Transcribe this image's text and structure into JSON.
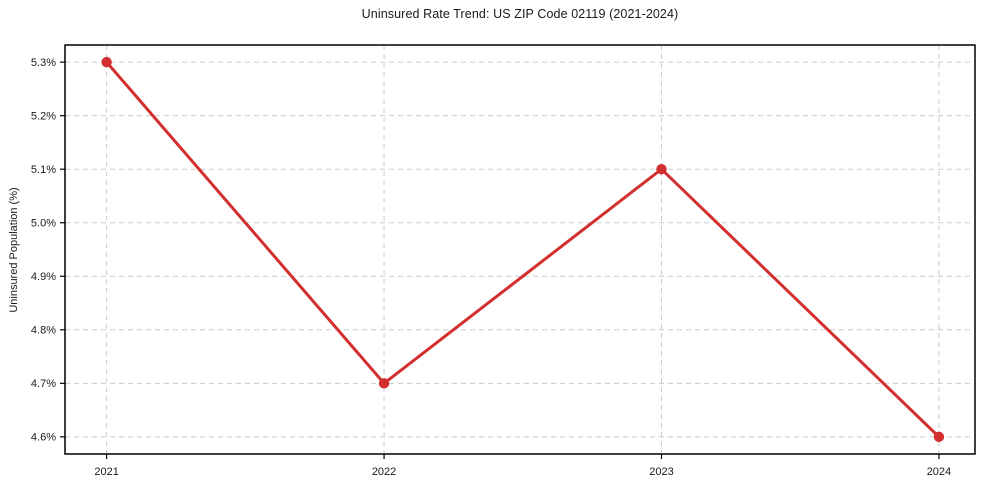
{
  "page": {
    "background": "#ffffff"
  },
  "chart_data": {
    "type": "line",
    "title": "Uninsured Rate Trend: US ZIP Code 02119 (2021-2024)",
    "xlabel": "",
    "ylabel": "Uninsured Population (%)",
    "x": [
      2021,
      2022,
      2023,
      2024
    ],
    "values": [
      5.3,
      4.7,
      5.1,
      4.6
    ],
    "xtick_labels": [
      "2021",
      "2022",
      "2023",
      "2024"
    ],
    "ytick_values": [
      4.6,
      4.7,
      4.8,
      4.9,
      5.0,
      5.1,
      5.2,
      5.3
    ],
    "ytick_labels": [
      "4.6%",
      "4.7%",
      "4.8%",
      "4.9%",
      "5.0%",
      "5.1%",
      "5.2%",
      "5.3%"
    ],
    "xlim": [
      2020.85,
      2024.13
    ],
    "ylim": [
      4.568,
      5.332
    ],
    "grid": true,
    "legend": "none",
    "line_color": "#d32f2f",
    "marker": "circle",
    "marker_radius": 5.2,
    "line_width": 3,
    "grid_color": "#cccccc",
    "axis_color": "#000000",
    "text_color": "#1a1a1a"
  }
}
